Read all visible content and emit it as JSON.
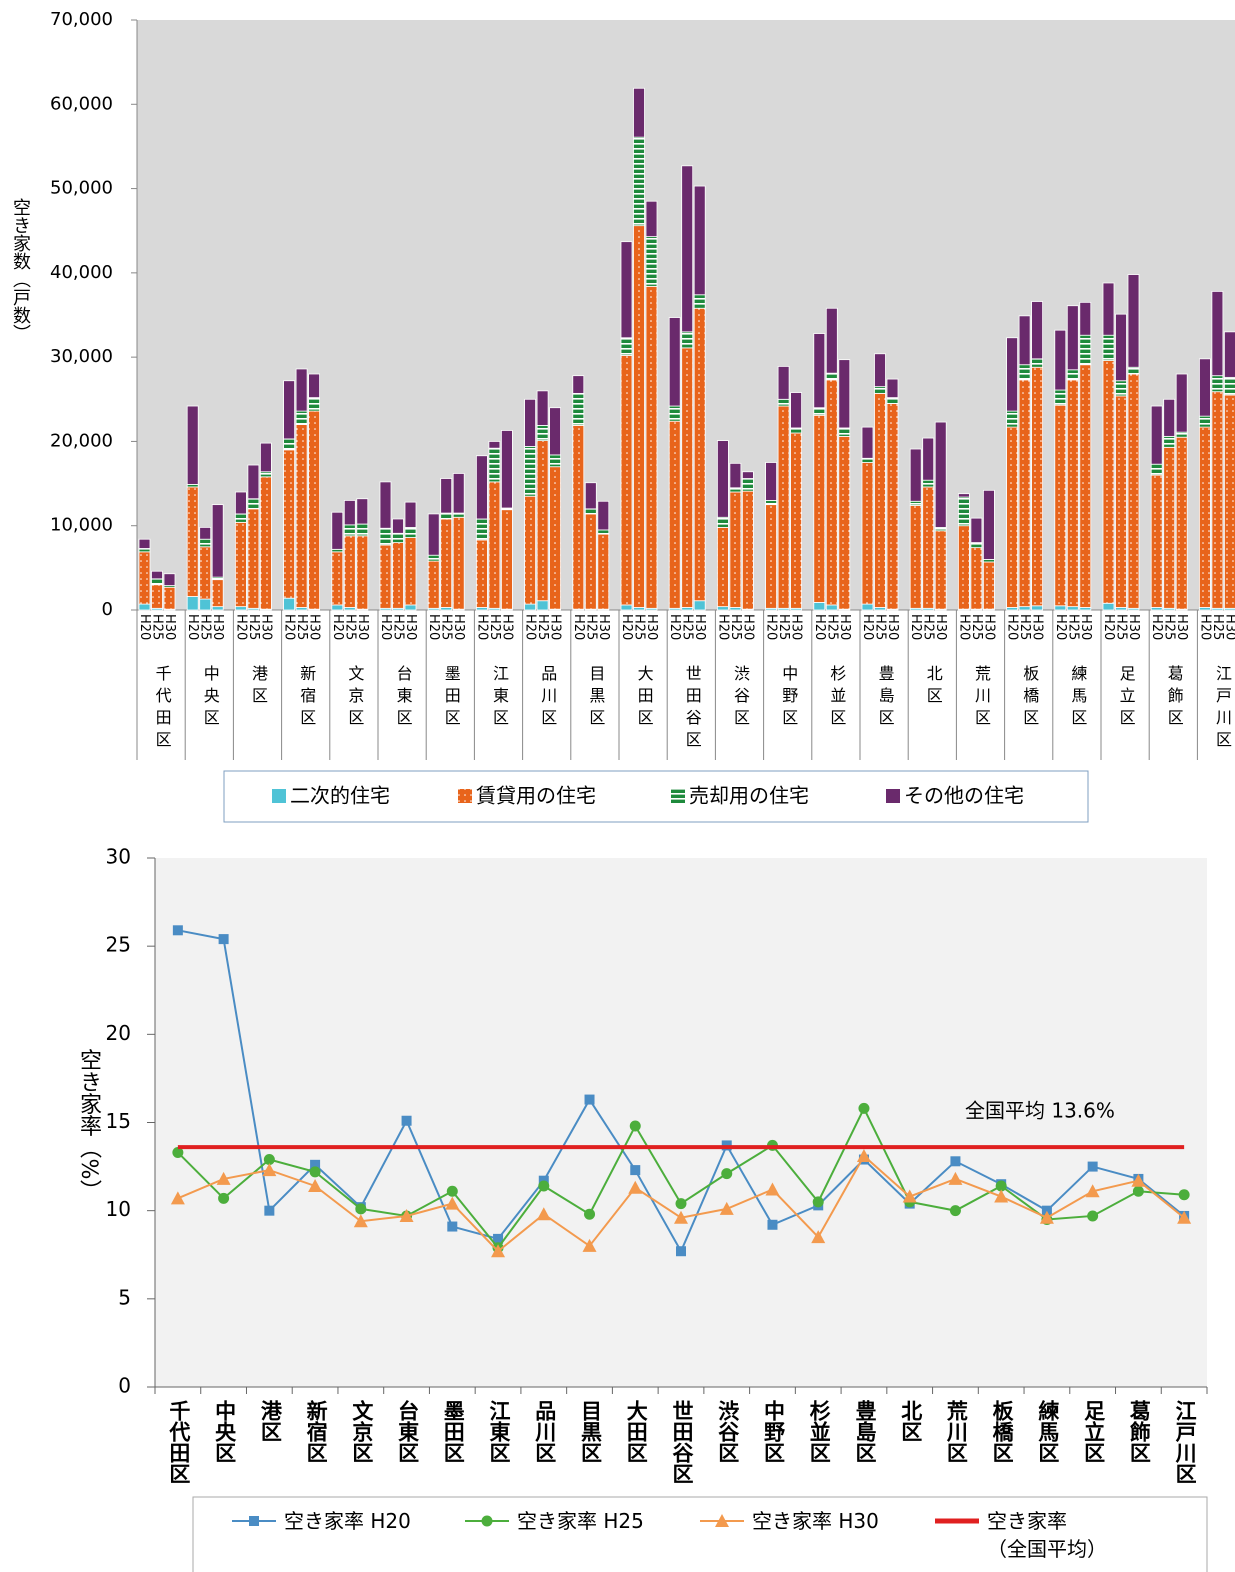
{
  "chart_data": [
    {
      "type": "stacked_bar",
      "y_label": "空き家数（戸数）",
      "categories": [
        "千代田区",
        "中央区",
        "港区",
        "新宿区",
        "文京区",
        "台東区",
        "墨田区",
        "江東区",
        "品川区",
        "目黒区",
        "大田区",
        "世田谷区",
        "渋谷区",
        "中野区",
        "杉並区",
        "豊島区",
        "北区",
        "荒川区",
        "板橋区",
        "練馬区",
        "足立区",
        "葛飾区",
        "江戸川区"
      ],
      "subcategories": [
        "H20",
        "H25",
        "H30"
      ],
      "ylim": [
        0,
        70000
      ],
      "yticks": [
        {
          "value": 0,
          "label": "0"
        },
        {
          "value": 10000,
          "label": "10,000"
        },
        {
          "value": 20000,
          "label": "20,000"
        },
        {
          "value": 30000,
          "label": "30,000"
        },
        {
          "value": 40000,
          "label": "40,000"
        },
        {
          "value": 50000,
          "label": "50,000"
        },
        {
          "value": 60000,
          "label": "60,000"
        },
        {
          "value": 70000,
          "label": "70,000"
        }
      ],
      "series": [
        {
          "name": "二次的住宅",
          "color": "#4fc3d6",
          "pattern": "none",
          "values": [
            [
              700,
              200,
              100
            ],
            [
              1600,
              1300,
              400
            ],
            [
              400,
              200,
              100
            ],
            [
              1400,
              300,
              100
            ],
            [
              600,
              300,
              100
            ],
            [
              200,
              200,
              600
            ],
            [
              200,
              300,
              100
            ],
            [
              300,
              200,
              100
            ],
            [
              700,
              1100,
              100
            ],
            [
              100,
              100,
              100
            ],
            [
              600,
              300,
              200
            ],
            [
              200,
              300,
              1100
            ],
            [
              400,
              300,
              100
            ],
            [
              200,
              200,
              200
            ],
            [
              900,
              600,
              100
            ],
            [
              700,
              300,
              100
            ],
            [
              200,
              200,
              100
            ],
            [
              100,
              100,
              100
            ],
            [
              300,
              400,
              500
            ],
            [
              500,
              400,
              300
            ],
            [
              800,
              300,
              200
            ],
            [
              300,
              200,
              100
            ],
            [
              300,
              200,
              200
            ]
          ]
        },
        {
          "name": "賃貸用の住宅",
          "color": "#e8641b",
          "pattern": "dots",
          "values": [
            [
              6200,
              2800,
              2600
            ],
            [
              13000,
              6200,
              3200
            ],
            [
              10000,
              11800,
              15700
            ],
            [
              17600,
              21700,
              23500
            ],
            [
              6300,
              8500,
              8700
            ],
            [
              7500,
              7800,
              8000
            ],
            [
              5600,
              10500,
              10900
            ],
            [
              8000,
              15000,
              11800
            ],
            [
              12800,
              19000,
              16900
            ],
            [
              21800,
              11300,
              8900
            ],
            [
              29600,
              45300,
              38200
            ],
            [
              22200,
              30800,
              34700
            ],
            [
              9400,
              13700,
              14000
            ],
            [
              12300,
              24000,
              20800
            ],
            [
              22200,
              26700,
              20500
            ],
            [
              16800,
              25400,
              24400
            ],
            [
              12200,
              14400,
              9300
            ],
            [
              9900,
              7300,
              5600
            ],
            [
              21400,
              26900,
              28300
            ],
            [
              23800,
              26900,
              28800
            ],
            [
              28800,
              25100,
              27800
            ],
            [
              15700,
              19100,
              20400
            ],
            [
              21400,
              25700,
              25300
            ]
          ]
        },
        {
          "name": "売却用の住宅",
          "color": "#1e8a3c",
          "pattern": "stripes",
          "values": [
            [
              400,
              700,
              200
            ],
            [
              300,
              900,
              300
            ],
            [
              1000,
              1200,
              600
            ],
            [
              1300,
              1600,
              1600
            ],
            [
              300,
              1300,
              1400
            ],
            [
              2000,
              1100,
              1200
            ],
            [
              700,
              700,
              500
            ],
            [
              2500,
              4000,
              200
            ],
            [
              5900,
              1800,
              1400
            ],
            [
              3800,
              600,
              500
            ],
            [
              2100,
              10500,
              5900
            ],
            [
              1800,
              1900,
              1600
            ],
            [
              1200,
              500,
              1500
            ],
            [
              500,
              800,
              600
            ],
            [
              900,
              800,
              1000
            ],
            [
              500,
              800,
              700
            ],
            [
              500,
              800,
              400
            ],
            [
              3400,
              600,
              300
            ],
            [
              1900,
              1800,
              1000
            ],
            [
              1800,
              1200,
              3500
            ],
            [
              3000,
              1800,
              800
            ],
            [
              1300,
              1300,
              600
            ],
            [
              1300,
              1900,
              2100
            ]
          ]
        },
        {
          "name": "その他の住宅",
          "color": "#6a2a6c",
          "pattern": "none",
          "values": [
            [
              1100,
              900,
              1400
            ],
            [
              9300,
              1400,
              8600
            ],
            [
              2600,
              4000,
              3400
            ],
            [
              6900,
              5000,
              2800
            ],
            [
              4400,
              2900,
              3000
            ],
            [
              5500,
              1700,
              3000
            ],
            [
              4900,
              4100,
              4700
            ],
            [
              7500,
              800,
              9200
            ],
            [
              5600,
              4100,
              5600
            ],
            [
              2100,
              3100,
              3400
            ],
            [
              11400,
              5800,
              4200
            ],
            [
              10500,
              19700,
              12900
            ],
            [
              9100,
              2900,
              800
            ],
            [
              4500,
              3900,
              4200
            ],
            [
              8800,
              7700,
              8100
            ],
            [
              3700,
              3900,
              2200
            ],
            [
              6200,
              5000,
              12500
            ],
            [
              400,
              2900,
              8200
            ],
            [
              8700,
              5800,
              6800
            ],
            [
              7100,
              7600,
              3900
            ],
            [
              6200,
              7900,
              11000
            ],
            [
              6900,
              4400,
              6900
            ],
            [
              6800,
              10000,
              5400
            ]
          ]
        }
      ]
    },
    {
      "type": "line",
      "y_label": "空き家率（%）",
      "annotation": "全国平均  13.6%",
      "categories": [
        "千代田区",
        "中央区",
        "港区",
        "新宿区",
        "文京区",
        "台東区",
        "墨田区",
        "江東区",
        "品川区",
        "目黒区",
        "大田区",
        "世田谷区",
        "渋谷区",
        "中野区",
        "杉並区",
        "豊島区",
        "北区",
        "荒川区",
        "板橋区",
        "練馬区",
        "足立区",
        "葛飾区",
        "江戸川区"
      ],
      "ylim": [
        0,
        30
      ],
      "yticks": [
        0,
        5,
        10,
        15,
        20,
        25,
        30
      ],
      "series": [
        {
          "name": "空き家率 H20",
          "color": "#4a8cc4",
          "marker": "square",
          "values": [
            25.9,
            25.4,
            10.0,
            12.6,
            10.2,
            15.1,
            9.1,
            8.4,
            11.7,
            16.3,
            12.3,
            7.7,
            13.7,
            9.2,
            10.3,
            12.9,
            10.4,
            12.8,
            11.5,
            10.0,
            12.5,
            11.8,
            9.7
          ]
        },
        {
          "name": "空き家率 H25",
          "color": "#4cae3c",
          "marker": "circle",
          "values": [
            13.3,
            10.7,
            12.9,
            12.2,
            10.1,
            9.7,
            11.1,
            7.9,
            11.4,
            9.8,
            14.8,
            10.4,
            12.1,
            13.7,
            10.5,
            15.8,
            10.5,
            10.0,
            11.4,
            9.5,
            9.7,
            11.1,
            10.9
          ]
        },
        {
          "name": "空き家率 H30",
          "color": "#f39a4e",
          "marker": "triangle",
          "values": [
            10.7,
            11.8,
            12.3,
            11.4,
            9.4,
            9.7,
            10.4,
            7.7,
            9.8,
            8.0,
            11.3,
            9.6,
            10.1,
            11.2,
            8.5,
            13.1,
            10.8,
            11.8,
            10.8,
            9.6,
            11.1,
            11.7,
            9.6
          ]
        },
        {
          "name": "空き家率\n（全国平均）",
          "color": "#e02020",
          "marker": "none",
          "value": 13.6
        }
      ]
    }
  ]
}
